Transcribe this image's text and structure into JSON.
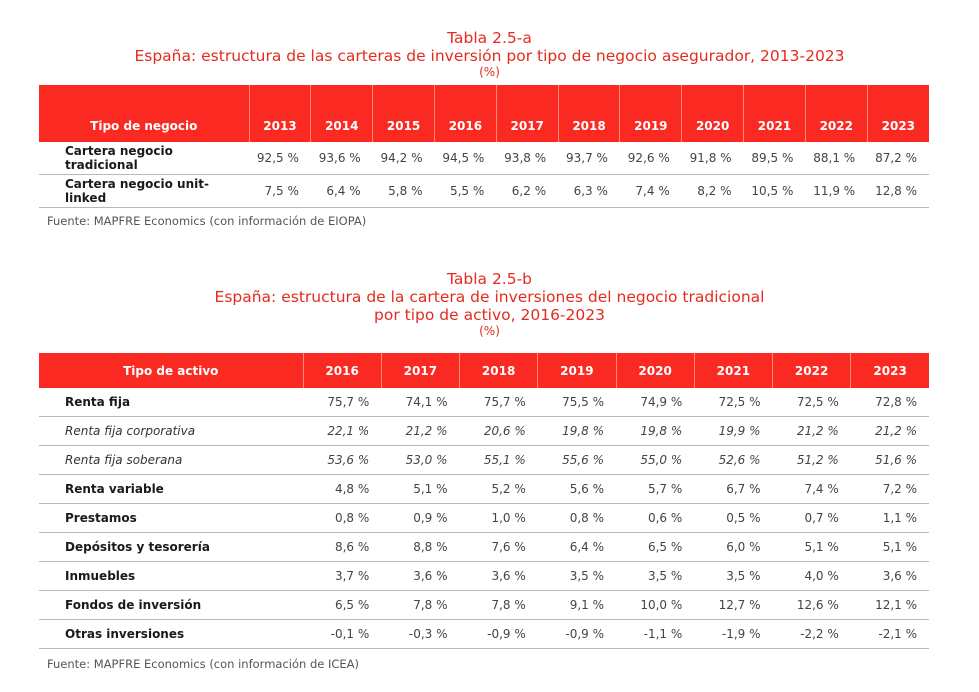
{
  "table_a": {
    "title": "Tabla 2.5-a",
    "subtitle": "España: estructura de las carteras de inversión por tipo de negocio asegurador, 2013-2023",
    "unit": "(%)",
    "header": [
      "Tipo de negocio",
      "2013",
      "2014",
      "2015",
      "2016",
      "2017",
      "2018",
      "2019",
      "2020",
      "2021",
      "2022",
      "2023"
    ],
    "rows": [
      {
        "label": "Cartera negocio tradicional",
        "values": [
          "92,5 %",
          "93,6 %",
          "94,2 %",
          "94,5 %",
          "93,8 %",
          "93,7 %",
          "92,6 %",
          "91,8 %",
          "89,5 %",
          "88,1 %",
          "87,2 %"
        ]
      },
      {
        "label": "Cartera negocio unit-linked",
        "values": [
          "7,5 %",
          "6,4 %",
          "5,8 %",
          "5,5 %",
          "6,2 %",
          "6,3 %",
          "7,4 %",
          "8,2 %",
          "10,5 %",
          "11,9 %",
          "12,8 %"
        ]
      }
    ],
    "source": "Fuente: MAPFRE Economics (con información de EIOPA)"
  },
  "table_b": {
    "title": "Tabla 2.5-b",
    "subtitle_line1": "España: estructura de la cartera de inversiones del negocio tradicional",
    "subtitle_line2": "por tipo de activo, 2016-2023",
    "unit": "(%)",
    "header": [
      "Tipo de activo",
      "2016",
      "2017",
      "2018",
      "2019",
      "2020",
      "2021",
      "2022",
      "2023"
    ],
    "rows": [
      {
        "label": "Renta fija",
        "sub": false,
        "values": [
          "75,7 %",
          "74,1 %",
          "75,7 %",
          "75,5 %",
          "74,9 %",
          "72,5 %",
          "72,5 %",
          "72,8 %"
        ]
      },
      {
        "label": "Renta fija corporativa",
        "sub": true,
        "values": [
          "22,1 %",
          "21,2 %",
          "20,6 %",
          "19,8 %",
          "19,8 %",
          "19,9 %",
          "21,2 %",
          "21,2 %"
        ]
      },
      {
        "label": "Renta fija soberana",
        "sub": true,
        "values": [
          "53,6 %",
          "53,0 %",
          "55,1 %",
          "55,6 %",
          "55,0 %",
          "52,6 %",
          "51,2 %",
          "51,6 %"
        ]
      },
      {
        "label": "Renta variable",
        "sub": false,
        "values": [
          "4,8 %",
          "5,1 %",
          "5,2 %",
          "5,6 %",
          "5,7 %",
          "6,7 %",
          "7,4 %",
          "7,2 %"
        ]
      },
      {
        "label": "Prestamos",
        "sub": false,
        "values": [
          "0,8 %",
          "0,9 %",
          "1,0 %",
          "0,8 %",
          "0,6 %",
          "0,5 %",
          "0,7 %",
          "1,1 %"
        ]
      },
      {
        "label": "Depósitos y tesorería",
        "sub": false,
        "values": [
          "8,6 %",
          "8,8 %",
          "7,6 %",
          "6,4 %",
          "6,5 %",
          "6,0 %",
          "5,1 %",
          "5,1 %"
        ]
      },
      {
        "label": "Inmuebles",
        "sub": false,
        "values": [
          "3,7 %",
          "3,6 %",
          "3,6 %",
          "3,5 %",
          "3,5 %",
          "3,5 %",
          "4,0 %",
          "3,6 %"
        ]
      },
      {
        "label": "Fondos de inversión",
        "sub": false,
        "values": [
          "6,5 %",
          "7,8 %",
          "7,8 %",
          "9,1 %",
          "10,0 %",
          "12,7 %",
          "12,6 %",
          "12,1 %"
        ]
      },
      {
        "label": "Otras inversiones",
        "sub": false,
        "values": [
          "-0,1 %",
          "-0,3 %",
          "-0,9 %",
          "-0,9 %",
          "-1,1 %",
          "-1,9 %",
          "-2,2 %",
          "-2,1 %"
        ]
      }
    ],
    "source": "Fuente: MAPFRE Economics (con información de ICEA)"
  },
  "colors": {
    "title_red": "#e52b1e",
    "header_red": "#fa2a22"
  }
}
